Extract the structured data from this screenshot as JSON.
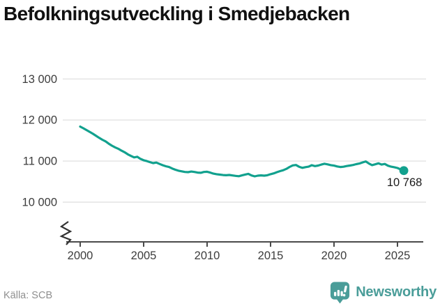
{
  "page": {
    "title": "Befolkningsutveckling i Smedjebacken",
    "source": "Källa: SCB",
    "brand": "Newsworthy"
  },
  "colors": {
    "accent_line": "#12a18e",
    "brand_teal": "#4a9d99",
    "axis": "#4a4a4a",
    "grid": "#e3e3e3",
    "tick_text": "#3d3d3d",
    "muted_text": "#8f8f8f",
    "title_text": "#111111"
  },
  "chart_data": {
    "type": "line",
    "title": "Befolkningsutveckling i Smedjebacken",
    "xlabel": "",
    "ylabel": "",
    "grid": true,
    "legend": "none",
    "axis_break_bottom_left": true,
    "xlim": [
      1999.6,
      2026.9
    ],
    "ylim": [
      10000,
      13000
    ],
    "x_tick_values": [
      2000,
      2005,
      2010,
      2015,
      2020,
      2025
    ],
    "x_tick_labels": [
      "2000",
      "2005",
      "2010",
      "2015",
      "2020",
      "2025"
    ],
    "y_tick_values": [
      13000,
      12000,
      11000,
      10000
    ],
    "y_tick_labels": [
      "13 000",
      "12 000",
      "11 000",
      "10 000"
    ],
    "end_label": "10 768",
    "end_value": 10768,
    "series": [
      {
        "name": "Befolkning",
        "points": [
          [
            2000.0,
            11840
          ],
          [
            2000.25,
            11800
          ],
          [
            2000.5,
            11755
          ],
          [
            2000.75,
            11710
          ],
          [
            2001.0,
            11665
          ],
          [
            2001.25,
            11615
          ],
          [
            2001.5,
            11565
          ],
          [
            2001.75,
            11520
          ],
          [
            2002.0,
            11480
          ],
          [
            2002.25,
            11425
          ],
          [
            2002.5,
            11375
          ],
          [
            2002.75,
            11335
          ],
          [
            2003.0,
            11300
          ],
          [
            2003.25,
            11255
          ],
          [
            2003.5,
            11215
          ],
          [
            2003.75,
            11165
          ],
          [
            2004.0,
            11125
          ],
          [
            2004.25,
            11090
          ],
          [
            2004.5,
            11105
          ],
          [
            2004.75,
            11055
          ],
          [
            2005.0,
            11020
          ],
          [
            2005.25,
            11000
          ],
          [
            2005.5,
            10975
          ],
          [
            2005.75,
            10950
          ],
          [
            2006.0,
            10965
          ],
          [
            2006.25,
            10930
          ],
          [
            2006.5,
            10900
          ],
          [
            2006.75,
            10875
          ],
          [
            2007.0,
            10855
          ],
          [
            2007.25,
            10820
          ],
          [
            2007.5,
            10790
          ],
          [
            2007.75,
            10765
          ],
          [
            2008.0,
            10750
          ],
          [
            2008.25,
            10735
          ],
          [
            2008.5,
            10730
          ],
          [
            2008.75,
            10745
          ],
          [
            2009.0,
            10735
          ],
          [
            2009.25,
            10720
          ],
          [
            2009.5,
            10715
          ],
          [
            2009.75,
            10735
          ],
          [
            2010.0,
            10740
          ],
          [
            2010.25,
            10720
          ],
          [
            2010.5,
            10695
          ],
          [
            2010.75,
            10680
          ],
          [
            2011.0,
            10670
          ],
          [
            2011.25,
            10660
          ],
          [
            2011.5,
            10655
          ],
          [
            2011.75,
            10662
          ],
          [
            2012.0,
            10650
          ],
          [
            2012.25,
            10640
          ],
          [
            2012.5,
            10632
          ],
          [
            2012.75,
            10652
          ],
          [
            2013.0,
            10672
          ],
          [
            2013.25,
            10690
          ],
          [
            2013.5,
            10650
          ],
          [
            2013.75,
            10628
          ],
          [
            2014.0,
            10645
          ],
          [
            2014.25,
            10652
          ],
          [
            2014.5,
            10645
          ],
          [
            2014.75,
            10655
          ],
          [
            2015.0,
            10680
          ],
          [
            2015.25,
            10702
          ],
          [
            2015.5,
            10730
          ],
          [
            2015.75,
            10755
          ],
          [
            2016.0,
            10778
          ],
          [
            2016.25,
            10812
          ],
          [
            2016.5,
            10858
          ],
          [
            2016.75,
            10895
          ],
          [
            2017.0,
            10905
          ],
          [
            2017.25,
            10862
          ],
          [
            2017.5,
            10835
          ],
          [
            2017.75,
            10852
          ],
          [
            2018.0,
            10865
          ],
          [
            2018.25,
            10900
          ],
          [
            2018.5,
            10878
          ],
          [
            2018.75,
            10892
          ],
          [
            2019.0,
            10915
          ],
          [
            2019.25,
            10935
          ],
          [
            2019.5,
            10920
          ],
          [
            2019.75,
            10902
          ],
          [
            2020.0,
            10890
          ],
          [
            2020.25,
            10870
          ],
          [
            2020.5,
            10856
          ],
          [
            2020.75,
            10862
          ],
          [
            2021.0,
            10880
          ],
          [
            2021.25,
            10892
          ],
          [
            2021.5,
            10905
          ],
          [
            2021.75,
            10925
          ],
          [
            2022.0,
            10940
          ],
          [
            2022.25,
            10968
          ],
          [
            2022.5,
            10992
          ],
          [
            2022.75,
            10940
          ],
          [
            2023.0,
            10902
          ],
          [
            2023.25,
            10922
          ],
          [
            2023.5,
            10945
          ],
          [
            2023.75,
            10915
          ],
          [
            2024.0,
            10930
          ],
          [
            2024.25,
            10888
          ],
          [
            2024.5,
            10865
          ],
          [
            2024.75,
            10850
          ],
          [
            2025.0,
            10832
          ],
          [
            2025.25,
            10798
          ],
          [
            2025.5,
            10768
          ]
        ]
      }
    ]
  }
}
